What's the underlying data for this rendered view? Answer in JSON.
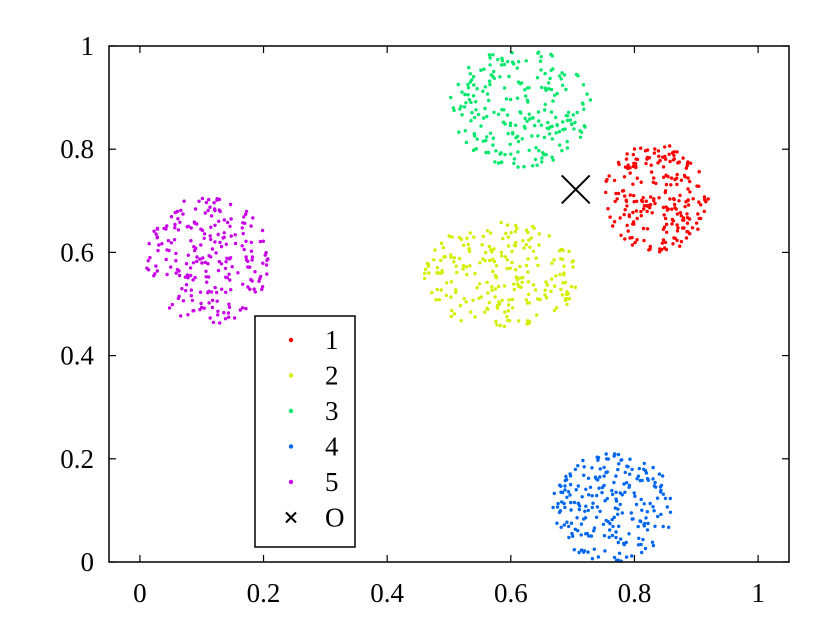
{
  "chart_data": {
    "type": "scatter",
    "title": "",
    "xlabel": "",
    "ylabel": "",
    "xlim": [
      -0.05,
      1.05
    ],
    "ylim": [
      0,
      1
    ],
    "xticks": [
      0,
      0.2,
      0.4,
      0.6,
      0.8,
      1
    ],
    "yticks": [
      0,
      0.2,
      0.4,
      0.6,
      0.8,
      1
    ],
    "xtick_labels": [
      "0",
      "0.2",
      "0.4",
      "0.6",
      "0.8",
      "1"
    ],
    "ytick_labels": [
      "0",
      "0.2",
      "0.4",
      "0.6",
      "0.8",
      "1"
    ],
    "grid": false,
    "legend_position": "lower-left",
    "series": [
      {
        "name": "1",
        "color": "#ff0000",
        "marker": "dot",
        "center": [
          0.835,
          0.705
        ],
        "spread": [
          0.085,
          0.105
        ],
        "count": 230
      },
      {
        "name": "2",
        "color": "#d4ee00",
        "marker": "dot",
        "center": [
          0.585,
          0.555
        ],
        "spread": [
          0.125,
          0.105
        ],
        "count": 230
      },
      {
        "name": "3",
        "color": "#00e86a",
        "marker": "dot",
        "center": [
          0.615,
          0.88
        ],
        "spread": [
          0.115,
          0.115
        ],
        "count": 230
      },
      {
        "name": "4",
        "color": "#0066ee",
        "marker": "dot",
        "center": [
          0.765,
          0.105
        ],
        "spread": [
          0.1,
          0.105
        ],
        "count": 230
      },
      {
        "name": "5",
        "color": "#c800e8",
        "marker": "dot",
        "center": [
          0.11,
          0.585
        ],
        "spread": [
          0.1,
          0.125
        ],
        "count": 230
      },
      {
        "name": "O",
        "color": "#000000",
        "marker": "x",
        "points": [
          [
            0.705,
            0.722
          ]
        ]
      }
    ]
  }
}
